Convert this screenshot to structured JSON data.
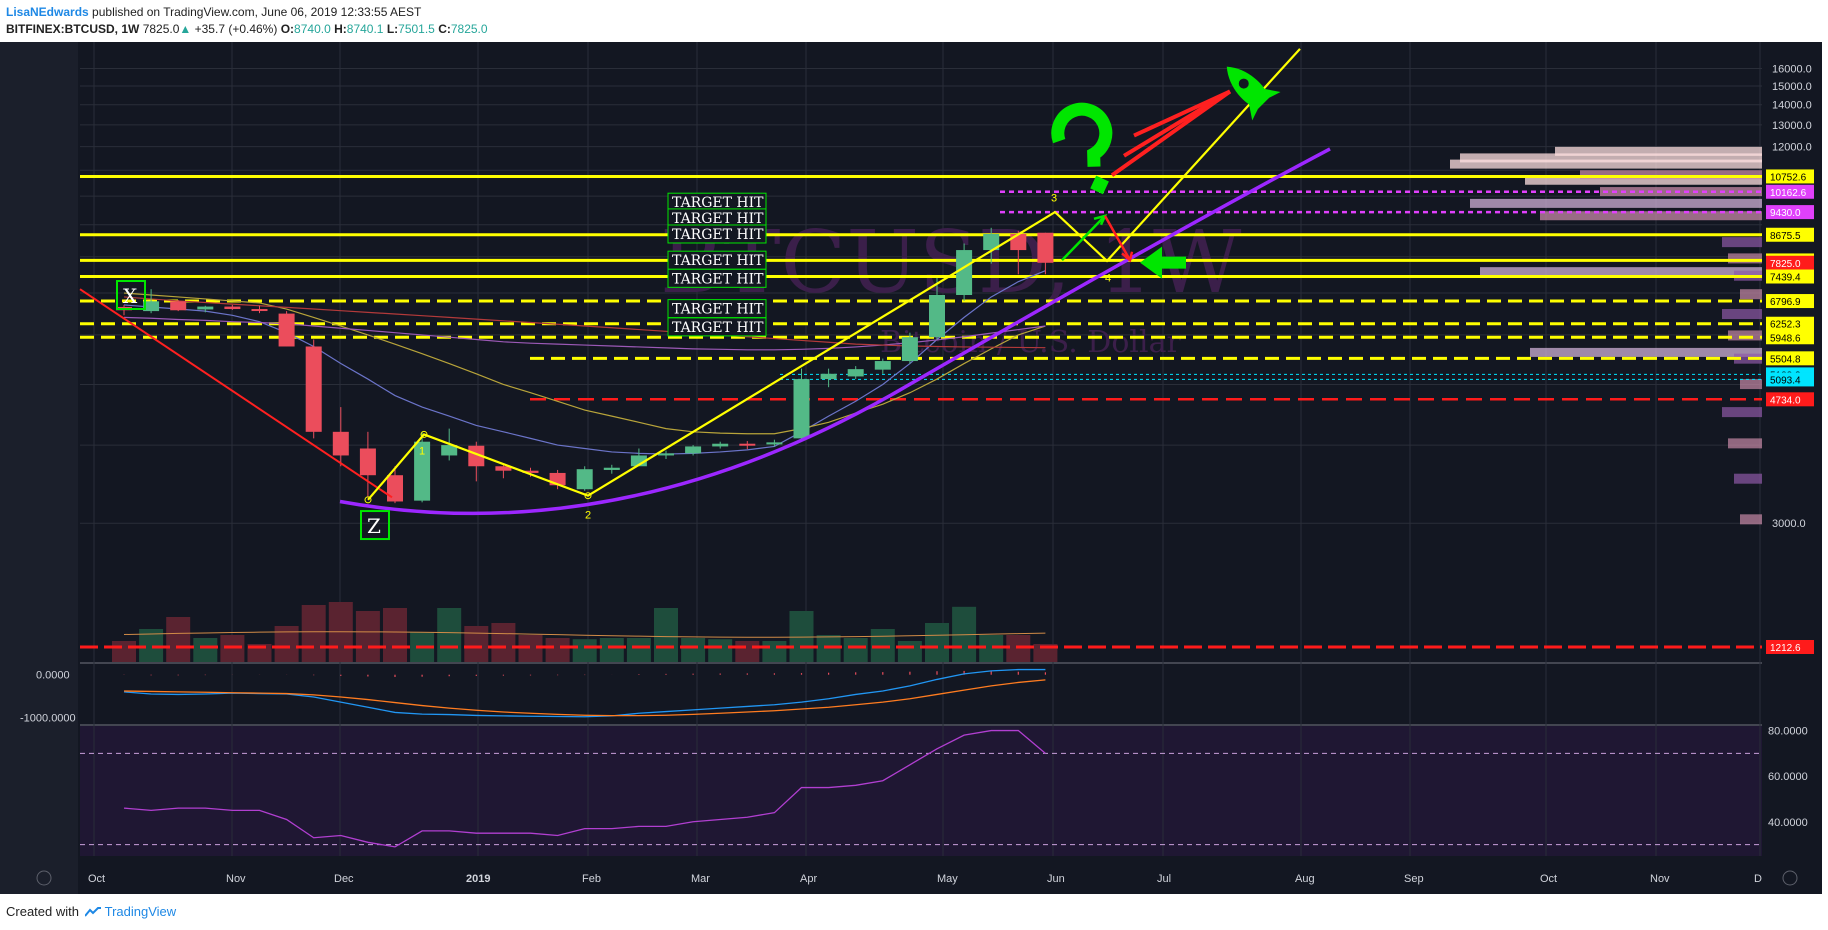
{
  "header": {
    "author": "LisaNEdwards",
    "published": "published on TradingView.com, June 06, 2019 12:33:55 AEST",
    "symbol": "BITFINEX:BTCUSD, 1W",
    "last": "7825.0",
    "change_arrow": "▲",
    "change": "+35.7 (+0.46%)",
    "o_label": "O:",
    "o": "8740.0",
    "h_label": "H:",
    "h": "8740.1",
    "l_label": "L:",
    "l": "7501.5",
    "c_label": "C:",
    "c": "7825.0"
  },
  "footer": {
    "created": "Created with",
    "brand": "TradingView"
  },
  "colors": {
    "background": "#131722",
    "grid": "#2a2e39",
    "up": "#53b987",
    "down": "#eb4d5c",
    "level_yellow": "#ffff00",
    "level_magenta": "#e040fb",
    "level_red": "#ff1b1b",
    "arc_purple": "#9c27ff",
    "signal_green": "#00e600",
    "label_cyan": "#00e5ff"
  },
  "watermark": {
    "symbol": "BTCUSD, 1W",
    "name": "Bitcoin / U.S. Dollar"
  },
  "annotations": {
    "target_hit": "TARGET HIT",
    "target_hit_count": 7,
    "pattern_labels": [
      "X",
      "Z"
    ],
    "wave_labels": [
      "1",
      "2",
      "3",
      "4"
    ],
    "icons": [
      "question-mark-icon",
      "rocket-icon",
      "arrow-left-icon"
    ]
  },
  "chart_data": [
    {
      "type": "candlestick",
      "title": "BITFINEX:BTCUSD, 1W",
      "x_labels": [
        "Oct",
        "Nov",
        "Dec",
        "2019",
        "Feb",
        "Mar",
        "Apr",
        "May",
        "Jun",
        "Jul",
        "Aug",
        "Sep",
        "Oct",
        "Nov",
        "D"
      ],
      "y_ticks": [
        3000,
        4000,
        5000,
        6000,
        7000,
        8000,
        9000,
        10000,
        11000,
        12000,
        13000,
        14000,
        15000,
        16000
      ],
      "y_tick_labels": [
        "3000.0",
        "12000.0",
        "13000.0",
        "14000.0",
        "15000.0",
        "16000.0"
      ],
      "ylim": [
        1800,
        17000
      ],
      "candles": [
        {
          "o": 6650,
          "h": 6700,
          "l": 6450,
          "c": 6570
        },
        {
          "o": 6550,
          "h": 7100,
          "l": 6500,
          "c": 6790
        },
        {
          "o": 6790,
          "h": 6820,
          "l": 6550,
          "c": 6570
        },
        {
          "o": 6590,
          "h": 6680,
          "l": 6520,
          "c": 6660
        },
        {
          "o": 6660,
          "h": 6700,
          "l": 6580,
          "c": 6600
        },
        {
          "o": 6600,
          "h": 6680,
          "l": 6500,
          "c": 6560
        },
        {
          "o": 6490,
          "h": 6550,
          "l": 5750,
          "c": 5750
        },
        {
          "o": 5750,
          "h": 5900,
          "l": 4100,
          "c": 4200
        },
        {
          "o": 4200,
          "h": 4600,
          "l": 3700,
          "c": 3850
        },
        {
          "o": 3950,
          "h": 4200,
          "l": 3300,
          "c": 3580
        },
        {
          "o": 3580,
          "h": 3700,
          "l": 3230,
          "c": 3250
        },
        {
          "o": 3260,
          "h": 4200,
          "l": 3240,
          "c": 4050
        },
        {
          "o": 3850,
          "h": 4250,
          "l": 3780,
          "c": 4000
        },
        {
          "o": 3990,
          "h": 4050,
          "l": 3500,
          "c": 3700
        },
        {
          "o": 3700,
          "h": 3720,
          "l": 3540,
          "c": 3640
        },
        {
          "o": 3640,
          "h": 3680,
          "l": 3560,
          "c": 3610
        },
        {
          "o": 3610,
          "h": 3650,
          "l": 3400,
          "c": 3450
        },
        {
          "o": 3400,
          "h": 3700,
          "l": 3380,
          "c": 3660
        },
        {
          "o": 3650,
          "h": 3720,
          "l": 3600,
          "c": 3680
        },
        {
          "o": 3700,
          "h": 3950,
          "l": 3700,
          "c": 3850
        },
        {
          "o": 3850,
          "h": 3920,
          "l": 3800,
          "c": 3880
        },
        {
          "o": 3880,
          "h": 4000,
          "l": 3850,
          "c": 3980
        },
        {
          "o": 3980,
          "h": 4050,
          "l": 3950,
          "c": 4020
        },
        {
          "o": 4020,
          "h": 4060,
          "l": 3940,
          "c": 4000
        },
        {
          "o": 4010,
          "h": 4080,
          "l": 3980,
          "c": 4040
        },
        {
          "o": 4100,
          "h": 5300,
          "l": 4050,
          "c": 5100
        },
        {
          "o": 5100,
          "h": 5300,
          "l": 4950,
          "c": 5200
        },
        {
          "o": 5150,
          "h": 5350,
          "l": 5100,
          "c": 5290
        },
        {
          "o": 5280,
          "h": 5500,
          "l": 5200,
          "c": 5450
        },
        {
          "o": 5450,
          "h": 6050,
          "l": 5400,
          "c": 5950
        },
        {
          "o": 5950,
          "h": 7400,
          "l": 5900,
          "c": 6950
        },
        {
          "o": 6950,
          "h": 8400,
          "l": 6800,
          "c": 8200
        },
        {
          "o": 8200,
          "h": 8900,
          "l": 7800,
          "c": 8700
        },
        {
          "o": 8700,
          "h": 8800,
          "l": 7500,
          "c": 8200
        },
        {
          "o": 8740,
          "h": 8740,
          "l": 7501.5,
          "c": 7825
        }
      ],
      "price_levels": [
        {
          "label": "10752.6",
          "value": 10752.6,
          "color": "yellow"
        },
        {
          "label": "10162.6",
          "value": 10162.6,
          "color": "magenta"
        },
        {
          "label": "9430.0",
          "value": 9430,
          "color": "magenta"
        },
        {
          "label": "8675.5",
          "value": 8675.5,
          "color": "yellow"
        },
        {
          "label": "7892.8",
          "value": 7892.8,
          "color": "yellow"
        },
        {
          "label": "7825.0",
          "value": 7825,
          "color": "red"
        },
        {
          "label": "7439.4",
          "value": 7439.4,
          "color": "yellow"
        },
        {
          "label": "6796.9",
          "value": 6796.9,
          "color": "yellow"
        },
        {
          "label": "6252.3",
          "value": 6252.3,
          "color": "yellow"
        },
        {
          "label": "5948.6",
          "value": 5948.6,
          "color": "yellow"
        },
        {
          "label": "5504.8",
          "value": 5504.8,
          "color": "yellow"
        },
        {
          "label": "5188.8",
          "value": 5188.8,
          "color": "cyan"
        },
        {
          "label": "5093.4",
          "value": 5093.4,
          "color": "cyan"
        },
        {
          "label": "4734.0",
          "value": 4734,
          "color": "red"
        },
        {
          "label": "1212.6",
          "value": 1212.6,
          "color": "red"
        }
      ]
    },
    {
      "type": "line",
      "title": "",
      "y_tick_labels": [
        "0.0000",
        "-1000.0000"
      ],
      "ylim": [
        -1150,
        250
      ],
      "series": [
        {
          "values": [
            -400,
            -450,
            -460,
            -450,
            -430,
            -440,
            -450,
            -520,
            -640,
            -760,
            -880,
            -920,
            -930,
            -950,
            -960,
            -970,
            -975,
            -980,
            -960,
            -900,
            -860,
            -820,
            -780,
            -740,
            -700,
            -640,
            -560,
            -460,
            -380,
            -260,
            -110,
            20,
            90,
            120,
            120
          ]
        },
        {
          "values": [
            -380,
            -390,
            -400,
            -410,
            -420,
            -430,
            -440,
            -470,
            -520,
            -580,
            -650,
            -720,
            -780,
            -830,
            -870,
            -900,
            -925,
            -945,
            -955,
            -955,
            -945,
            -925,
            -900,
            -870,
            -840,
            -800,
            -760,
            -700,
            -640,
            -560,
            -460,
            -360,
            -260,
            -180,
            -120
          ]
        }
      ]
    },
    {
      "type": "line",
      "title": "",
      "y_tick_labels": [
        "40.0000",
        "60.0000",
        "80.0000"
      ],
      "ylim": [
        25,
        82
      ],
      "series": [
        {
          "values": [
            46,
            45,
            46,
            46,
            45,
            45,
            41,
            33,
            34,
            31,
            29,
            36,
            36,
            35,
            35,
            35,
            34,
            37,
            37,
            38,
            38,
            40,
            41,
            42,
            44,
            55,
            55,
            56,
            58,
            65,
            72,
            78,
            80,
            80,
            70
          ]
        }
      ]
    }
  ]
}
